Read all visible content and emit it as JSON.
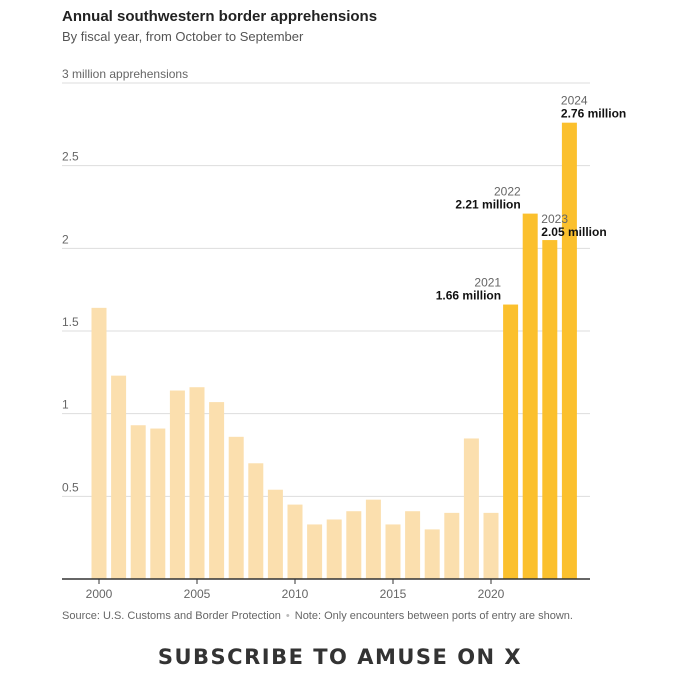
{
  "title": "Annual southwestern border apprehensions",
  "subtitle": "By fiscal year, from October to September",
  "colors": {
    "light_bar": "#fbdfae",
    "highlight_bar": "#fbc02d",
    "grid": "#dddddd",
    "axis": "#333333",
    "tick_text": "#666666"
  },
  "chart_data": {
    "type": "bar",
    "x": [
      2000,
      2001,
      2002,
      2003,
      2004,
      2005,
      2006,
      2007,
      2008,
      2009,
      2010,
      2011,
      2012,
      2013,
      2014,
      2015,
      2016,
      2017,
      2018,
      2019,
      2020,
      2021,
      2022,
      2023,
      2024
    ],
    "values": [
      1.64,
      1.23,
      0.93,
      0.91,
      1.14,
      1.16,
      1.07,
      0.86,
      0.7,
      0.54,
      0.45,
      0.33,
      0.36,
      0.41,
      0.48,
      0.33,
      0.41,
      0.3,
      0.4,
      0.85,
      0.4,
      1.66,
      2.21,
      2.05,
      2.76
    ],
    "highlighted": [
      2021,
      2022,
      2023,
      2024
    ],
    "ylim": [
      0,
      3
    ],
    "y_ticks": [
      0.5,
      1,
      1.5,
      2,
      2.5
    ],
    "y_tick_labels": [
      "0.5",
      "1",
      "1.5",
      "2",
      "2.5"
    ],
    "y_top_label": "3 million apprehensions",
    "x_tick_labels": [
      "2000",
      "2005",
      "2010",
      "2015",
      "2020"
    ],
    "x_ticks": [
      2000,
      2005,
      2010,
      2015,
      2020
    ],
    "annotations": [
      {
        "year": 2021,
        "year_label": "2021",
        "value_label": "1.66 million"
      },
      {
        "year": 2022,
        "year_label": "2022",
        "value_label": "2.21 million"
      },
      {
        "year": 2023,
        "year_label": "2023",
        "value_label": "2.05 million"
      },
      {
        "year": 2024,
        "year_label": "2024",
        "value_label": "2.76 million"
      }
    ],
    "grid": true
  },
  "footer": {
    "source": "Source: U.S. Customs and Border Protection",
    "note": "Note: Only encounters between ports of entry are shown."
  },
  "watermark": "SUBSCRIBE TO AMUSE ON X"
}
